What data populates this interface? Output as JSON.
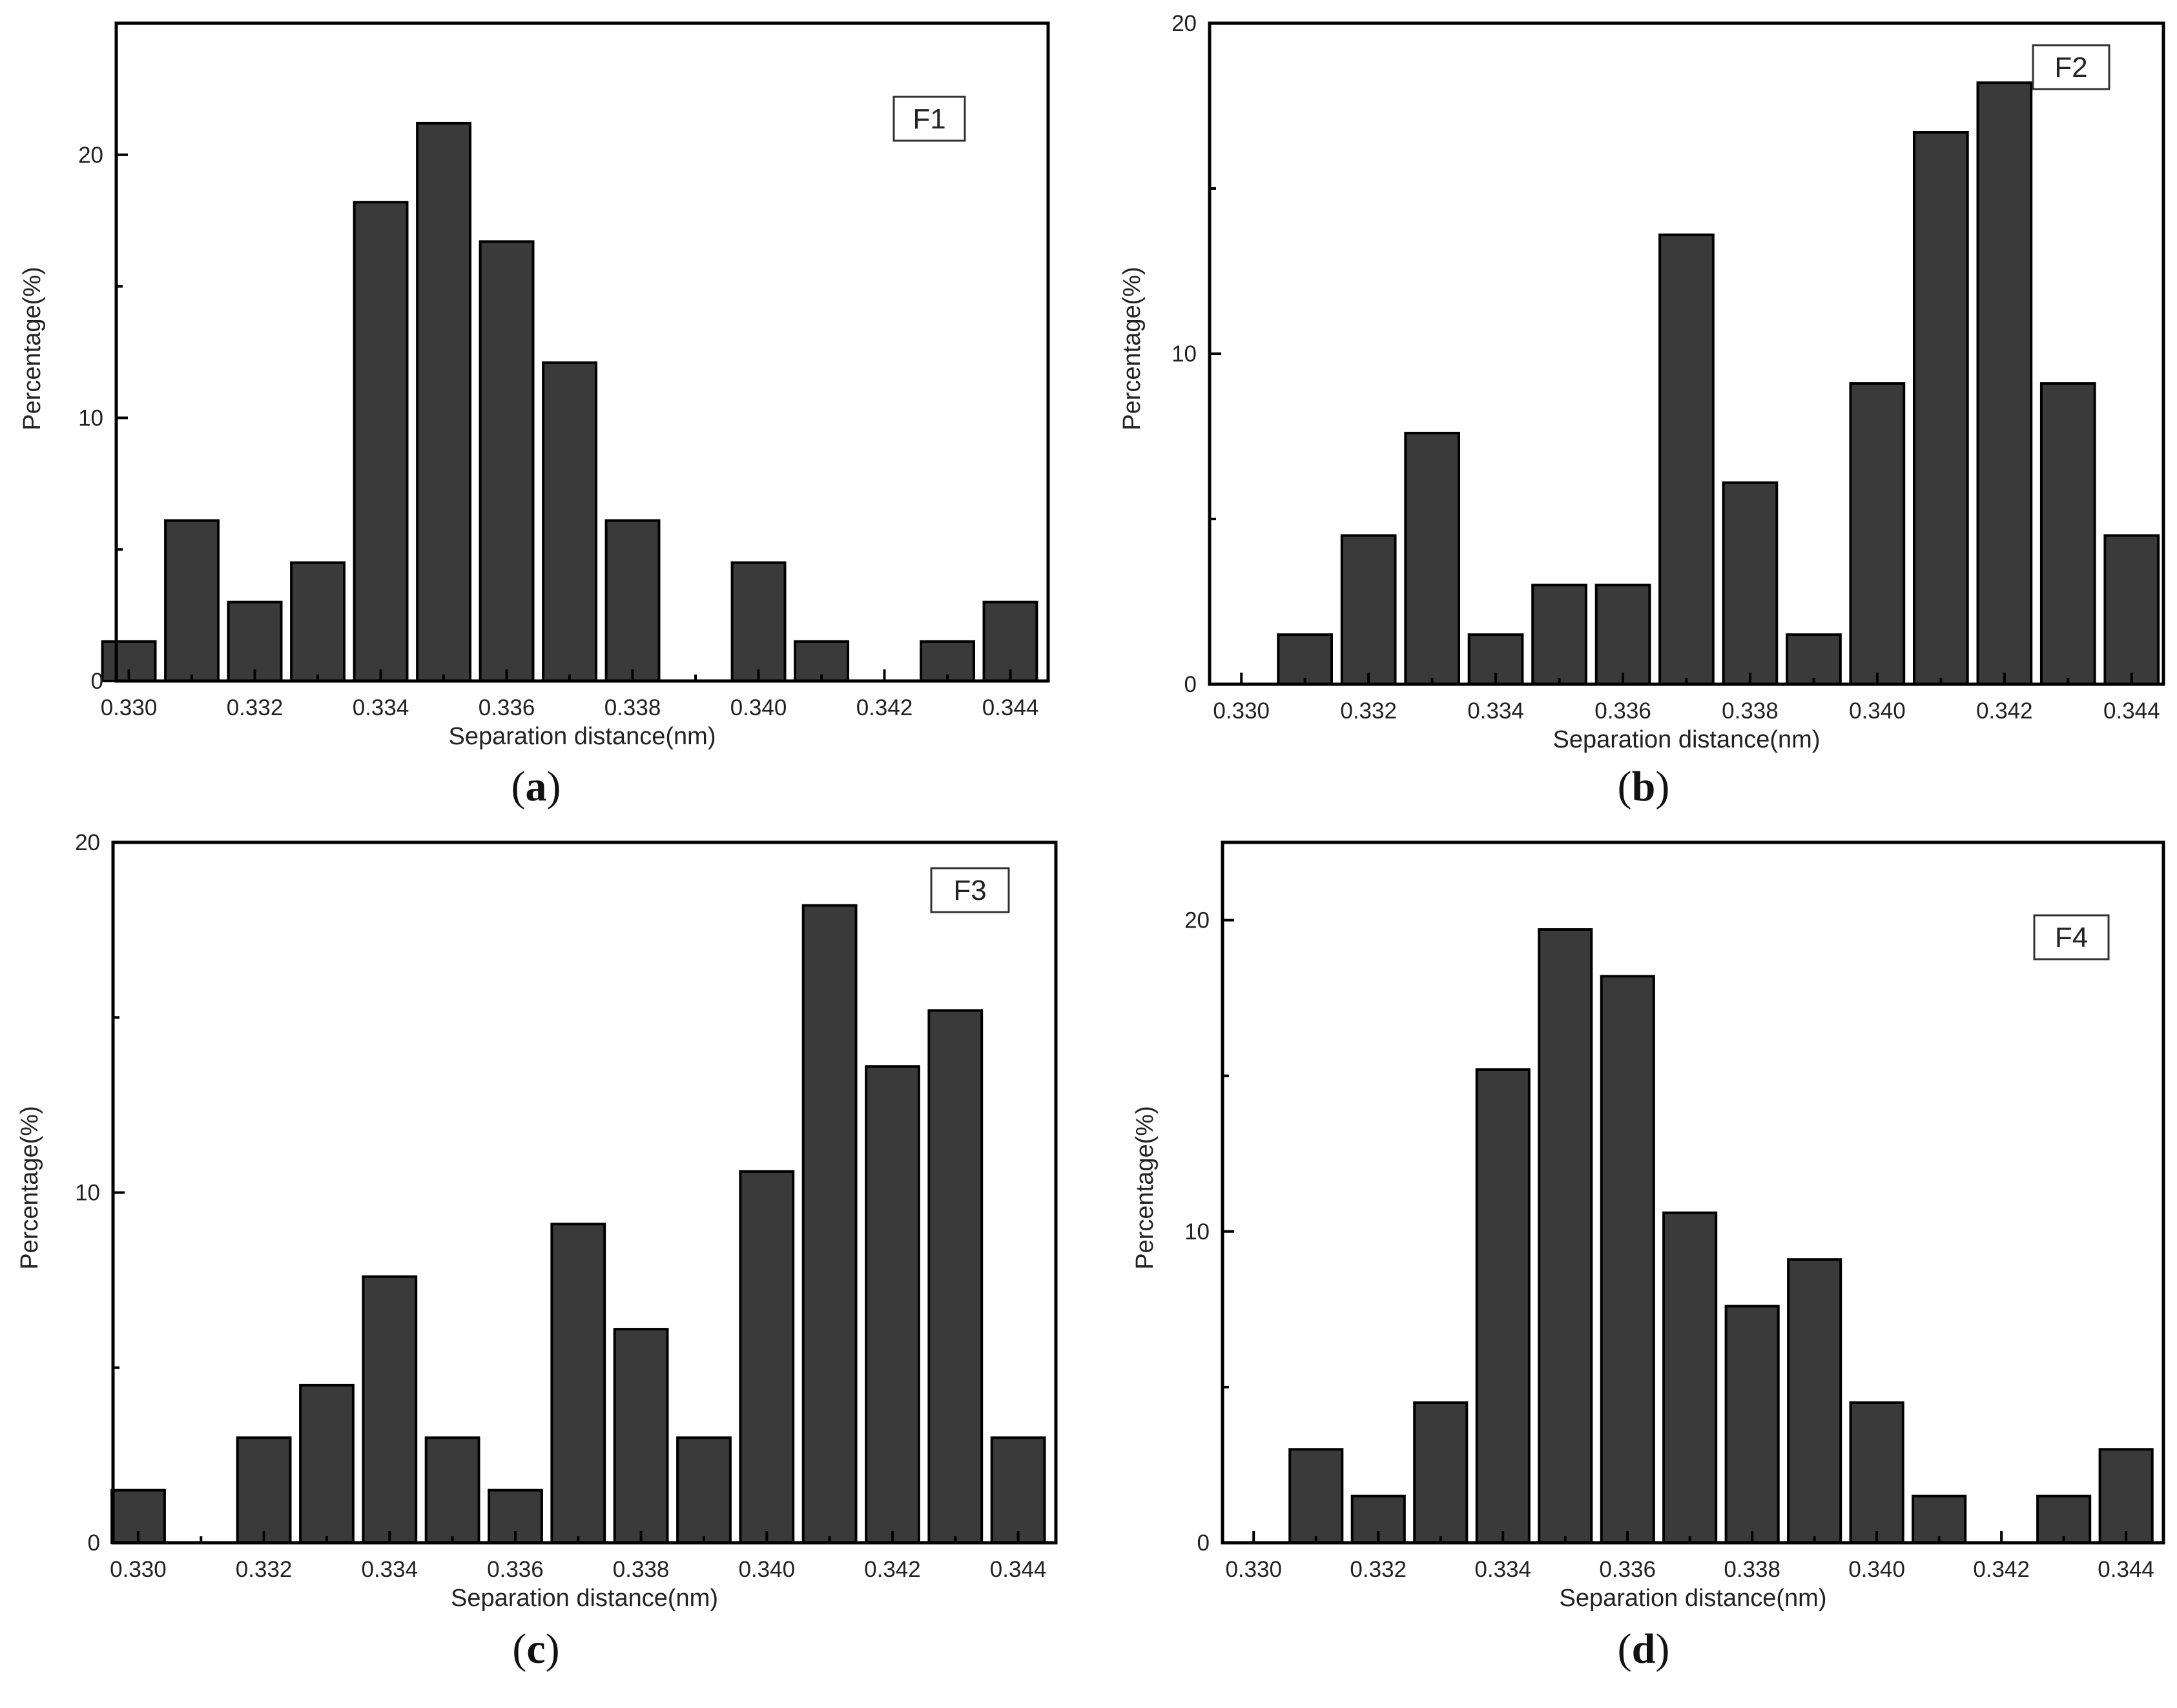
{
  "chart_data": [
    {
      "type": "bar",
      "panel": "(a)",
      "panel_letter": "a",
      "legend": "F1",
      "xlabel": "Separation distance(nm)",
      "ylabel": "Percentage(%)",
      "x": [
        0.33,
        0.331,
        0.332,
        0.333,
        0.334,
        0.335,
        0.336,
        0.337,
        0.338,
        0.339,
        0.34,
        0.341,
        0.342,
        0.343,
        0.344
      ],
      "values": [
        1.5,
        6.1,
        3.0,
        4.5,
        18.2,
        21.2,
        16.7,
        12.1,
        6.1,
        0.0,
        4.5,
        1.5,
        0.0,
        1.5,
        3.0
      ],
      "xticks": [
        "0.330",
        "0.332",
        "0.334",
        "0.336",
        "0.338",
        "0.340",
        "0.342",
        "0.344"
      ],
      "yticks": [
        "0",
        "10",
        "20"
      ],
      "xlim": [
        0.3298,
        0.3446
      ],
      "ylim": [
        0,
        25
      ]
    },
    {
      "type": "bar",
      "panel": "(b)",
      "panel_letter": "b",
      "legend": "F2",
      "xlabel": "Separation distance(nm)",
      "ylabel": "Percentage(%)",
      "x": [
        0.33,
        0.331,
        0.332,
        0.333,
        0.334,
        0.335,
        0.336,
        0.337,
        0.338,
        0.339,
        0.34,
        0.341,
        0.342,
        0.343,
        0.344
      ],
      "values": [
        0.0,
        1.5,
        4.5,
        7.6,
        1.5,
        3.0,
        3.0,
        13.6,
        6.1,
        1.5,
        9.1,
        16.7,
        18.2,
        9.1,
        4.5
      ],
      "xticks": [
        "0.330",
        "0.332",
        "0.334",
        "0.336",
        "0.338",
        "0.340",
        "0.342",
        "0.344"
      ],
      "yticks": [
        "0",
        "10",
        "20"
      ],
      "xlim": [
        0.3295,
        0.3445
      ],
      "ylim": [
        0,
        20
      ]
    },
    {
      "type": "bar",
      "panel": "(c)",
      "panel_letter": "c",
      "legend": "F3",
      "xlabel": "Separation distance(nm)",
      "ylabel": "Percentage(%)",
      "x": [
        0.33,
        0.331,
        0.332,
        0.333,
        0.334,
        0.335,
        0.336,
        0.337,
        0.338,
        0.339,
        0.34,
        0.341,
        0.342,
        0.343,
        0.344
      ],
      "values": [
        1.5,
        0.0,
        3.0,
        4.5,
        7.6,
        3.0,
        1.5,
        9.1,
        6.1,
        3.0,
        10.6,
        18.2,
        13.6,
        15.2,
        3.0
      ],
      "xticks": [
        "0.330",
        "0.332",
        "0.334",
        "0.336",
        "0.338",
        "0.340",
        "0.342",
        "0.344"
      ],
      "yticks": [
        "0",
        "10",
        "20"
      ],
      "xlim": [
        0.3296,
        0.3446
      ],
      "ylim": [
        0,
        20
      ]
    },
    {
      "type": "bar",
      "panel": "(d)",
      "panel_letter": "d",
      "legend": "F4",
      "xlabel": "Separation distance(nm)",
      "ylabel": "Percentage(%)",
      "x": [
        0.33,
        0.331,
        0.332,
        0.333,
        0.334,
        0.335,
        0.336,
        0.337,
        0.338,
        0.339,
        0.34,
        0.341,
        0.342,
        0.343,
        0.344
      ],
      "values": [
        0.0,
        3.0,
        1.5,
        4.5,
        15.2,
        19.7,
        18.2,
        10.6,
        7.6,
        9.1,
        4.5,
        1.5,
        0.0,
        1.5,
        3.0
      ],
      "xticks": [
        "0.330",
        "0.332",
        "0.334",
        "0.336",
        "0.338",
        "0.340",
        "0.342",
        "0.344"
      ],
      "yticks": [
        "0",
        "10",
        "20"
      ],
      "xlim": [
        0.3295,
        0.3446
      ],
      "ylim": [
        0,
        22.5
      ]
    }
  ],
  "colors": {
    "bar_fill": "#3a3a3a",
    "bar_stroke": "#000000",
    "axis": "#000000",
    "background": "#ffffff"
  }
}
